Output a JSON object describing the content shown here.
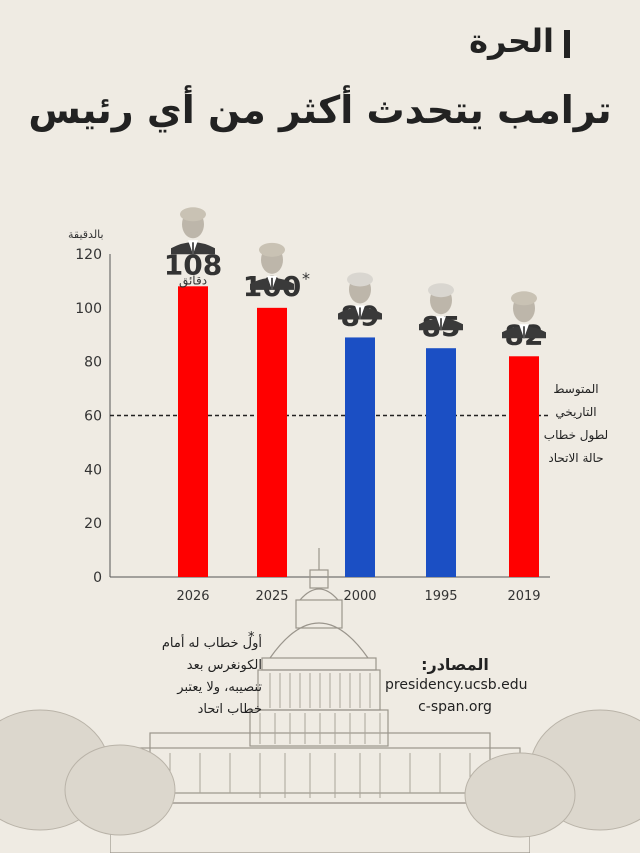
{
  "brand": {
    "logo_text": "الحرة"
  },
  "title": "ترامب يتحدث أكثر من أي رئيس",
  "unit_label": "بالدقيقة",
  "average_label": [
    "المتوسط",
    "التاريخي",
    "لطول خطاب",
    "حالة الاتحاد"
  ],
  "footnote": {
    "star": "*",
    "lines": [
      "أول خطاب له أمام",
      "الكونغرس بعد",
      "تنصيبه، ولا يعتبر",
      "خطاب اتحاد"
    ]
  },
  "sources": {
    "heading": "المصادر:",
    "items": [
      "presidency.ucsb.edu",
      "c-span.org"
    ]
  },
  "colors": {
    "republican": "#ff0000",
    "democrat": "#1b4fc4",
    "text": "#333333"
  },
  "chart_data": {
    "type": "bar",
    "categories": [
      "2026",
      "2025",
      "2000",
      "1995",
      "2019"
    ],
    "values": [
      108,
      100,
      89,
      85,
      82
    ],
    "value_labels": [
      "108",
      "100",
      "89",
      "85",
      "82"
    ],
    "value_suffix": [
      "",
      "*",
      "",
      "",
      ""
    ],
    "value_sublabel": [
      "دقائق",
      "",
      "",
      "",
      ""
    ],
    "bar_colors": [
      "#ff0000",
      "#ff0000",
      "#1b4fc4",
      "#1b4fc4",
      "#ff0000"
    ],
    "presidents": [
      "trump",
      "trump",
      "clinton",
      "clinton",
      "trump"
    ],
    "reference_line": 60,
    "ylim": [
      0,
      120
    ],
    "yticks": [
      0,
      20,
      40,
      60,
      80,
      100,
      120
    ],
    "xlabel": "",
    "ylabel": "",
    "grid": false
  }
}
